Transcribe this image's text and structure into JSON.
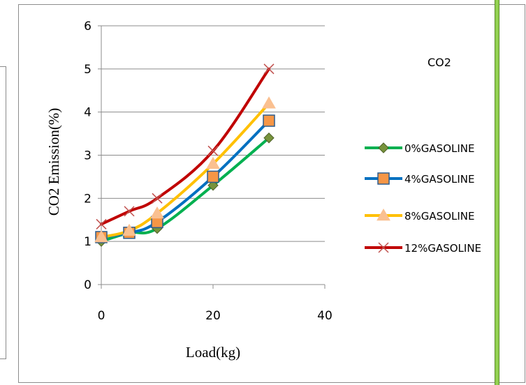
{
  "chart_data": {
    "type": "line",
    "title": "",
    "xlabel": "Load(kg)",
    "ylabel": "CO2 Emission(%)",
    "xlim": [
      0,
      40
    ],
    "ylim": [
      0,
      6
    ],
    "xticks": [
      0,
      20,
      40
    ],
    "yticks": [
      0,
      1,
      2,
      3,
      4,
      5,
      6
    ],
    "grid": "horizontal",
    "legend_title": "CO2",
    "legend_position": "right",
    "x": [
      0,
      5,
      10,
      20,
      30
    ],
    "series": [
      {
        "name": "0%GASOLINE",
        "values": [
          1.0,
          1.2,
          1.3,
          2.3,
          3.4
        ],
        "color": "#00b050",
        "marker": "diamond",
        "marker_color": "#77933c"
      },
      {
        "name": "4%GASOLINE",
        "values": [
          1.1,
          1.2,
          1.45,
          2.5,
          3.8
        ],
        "color": "#0070c0",
        "marker": "square",
        "marker_color": "#f79646"
      },
      {
        "name": "8%GASOLINE",
        "values": [
          1.1,
          1.25,
          1.65,
          2.8,
          4.2
        ],
        "color": "#ffc000",
        "marker": "triangle",
        "marker_color": "#fac090"
      },
      {
        "name": "12%GASOLINE",
        "values": [
          1.4,
          1.7,
          2.0,
          3.1,
          5.0
        ],
        "color": "#c00000",
        "marker": "cross",
        "marker_color": "#c0504d"
      }
    ]
  }
}
